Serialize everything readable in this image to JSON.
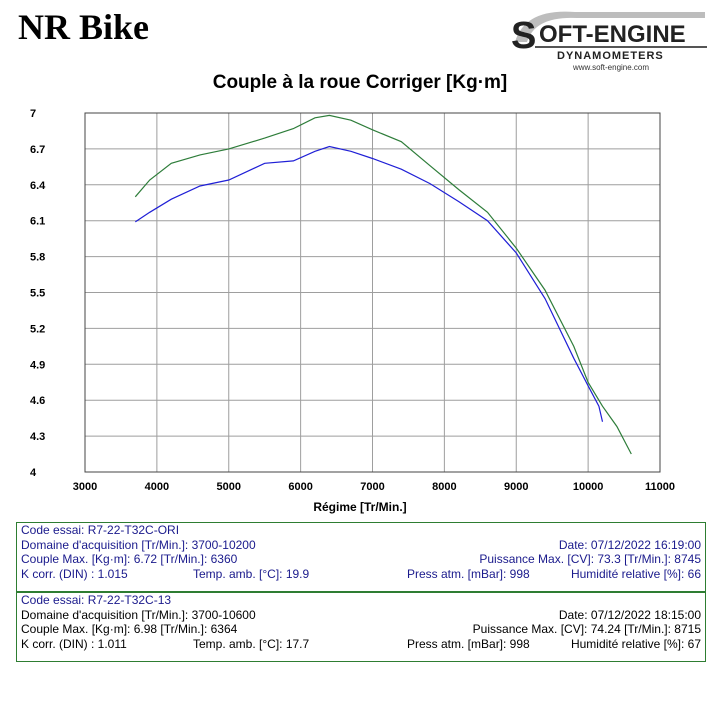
{
  "header": {
    "brand": "NR Bike",
    "logo_top": "OFT-ENGINE",
    "logo_s": "S",
    "logo_bottom": "DYNAMOMETERS",
    "logo_url": "www.soft-engine.com"
  },
  "chart_data": {
    "type": "line",
    "title": "Couple à la roue Corriger [Kg·m]",
    "xlabel": "Régime [Tr/Min.]",
    "ylabel": "",
    "xlim": [
      3000,
      11000
    ],
    "ylim": [
      4,
      7
    ],
    "xticks": [
      3000,
      4000,
      5000,
      6000,
      7000,
      8000,
      9000,
      10000,
      11000
    ],
    "yticks": [
      "4",
      "4.3",
      "4.6",
      "4.9",
      "5.2",
      "5.5",
      "5.8",
      "6.1",
      "6.4",
      "6.7",
      "7"
    ],
    "grid": true,
    "series": [
      {
        "color": "#1f1fd6",
        "x": [
          3700,
          3900,
          4200,
          4600,
          5000,
          5500,
          5900,
          6200,
          6400,
          6700,
          7000,
          7400,
          7800,
          8200,
          8600,
          9000,
          9400,
          9800,
          10000,
          10150,
          10200
        ],
        "y": [
          6.09,
          6.17,
          6.28,
          6.39,
          6.44,
          6.58,
          6.6,
          6.68,
          6.72,
          6.68,
          6.62,
          6.53,
          6.41,
          6.26,
          6.1,
          5.83,
          5.45,
          4.95,
          4.72,
          4.55,
          4.42
        ]
      },
      {
        "color": "#2e7d3a",
        "x": [
          3700,
          3900,
          4200,
          4600,
          5000,
          5500,
          5900,
          6200,
          6400,
          6700,
          7000,
          7400,
          7800,
          8200,
          8600,
          9000,
          9400,
          9800,
          10000,
          10200,
          10400,
          10600
        ],
        "y": [
          6.3,
          6.44,
          6.58,
          6.65,
          6.7,
          6.79,
          6.87,
          6.96,
          6.98,
          6.94,
          6.86,
          6.76,
          6.56,
          6.36,
          6.17,
          5.87,
          5.52,
          5.05,
          4.75,
          4.55,
          4.38,
          4.15
        ]
      }
    ]
  },
  "info": [
    {
      "code": "Code essai: R7-22-T32C-ORI",
      "domaine": "Domaine d'acquisition [Tr/Min.]: 3700-10200",
      "date": "Date: 07/12/2022   16:19:00",
      "couple": "Couple Max. [Kg·m]: 6.72   [Tr/Min.]: 6360",
      "puissance": "Puissance Max. [CV]: 73.3   [Tr/Min.]: 8745",
      "kcorr": "K corr. (DIN) : 1.015",
      "temp": "Temp. amb. [°C]: 19.9",
      "press": "Press atm. [mBar]: 998",
      "humid": "Humidité relative [%]: 66"
    },
    {
      "code": "Code essai: R7-22-T32C-13",
      "domaine": "Domaine d'acquisition [Tr/Min.]: 3700-10600",
      "date": "Date: 07/12/2022   18:15:00",
      "couple": "Couple Max. [Kg·m]: 6.98   [Tr/Min.]: 6364",
      "puissance": "Puissance Max. [CV]: 74.24   [Tr/Min.]: 8715",
      "kcorr": "K corr. (DIN) : 1.011",
      "temp": "Temp. amb. [°C]: 17.7",
      "press": "Press atm. [mBar]: 998",
      "humid": "Humidité relative [%]: 67"
    }
  ]
}
